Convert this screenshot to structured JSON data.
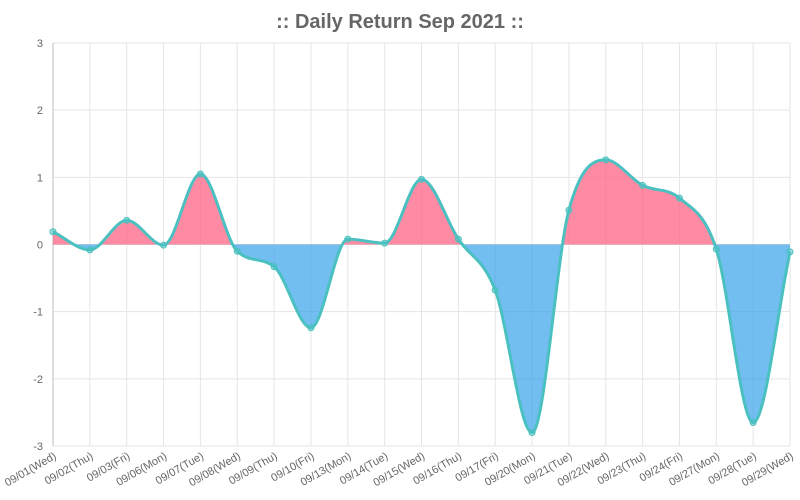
{
  "chart_data": {
    "type": "area",
    "title": ":: Daily Return Sep 2021 ::",
    "xlabel": "",
    "ylabel": "",
    "categories": [
      "09/01(Wed)",
      "09/02(Thu)",
      "09/03(Fri)",
      "09/06(Mon)",
      "09/07(Tue)",
      "09/08(Wed)",
      "09/09(Thu)",
      "09/10(Fri)",
      "09/13(Mon)",
      "09/14(Tue)",
      "09/15(Wed)",
      "09/16(Thu)",
      "09/17(Fri)",
      "09/20(Mon)",
      "09/21(Tue)",
      "09/22(Wed)",
      "09/23(Thu)",
      "09/24(Fri)",
      "09/27(Mon)",
      "09/28(Tue)",
      "09/29(Wed)"
    ],
    "values": [
      0.19,
      -0.08,
      0.36,
      -0.01,
      1.05,
      -0.1,
      -0.33,
      -1.24,
      0.08,
      0.02,
      0.97,
      0.08,
      -0.68,
      -2.8,
      0.51,
      1.26,
      0.88,
      0.69,
      -0.07,
      -2.65,
      -0.11
    ],
    "ylim": [
      -3,
      3
    ],
    "yticks": [
      "3",
      "2",
      "1",
      "0",
      "-1",
      "-2",
      "-3"
    ],
    "grid": true,
    "legend": "none",
    "colors": {
      "line": "#4bc0c0",
      "positive_fill": "#ff6384",
      "negative_fill": "#36a2eb",
      "point_fill": "#4bc0c0",
      "text": "#666666"
    }
  }
}
